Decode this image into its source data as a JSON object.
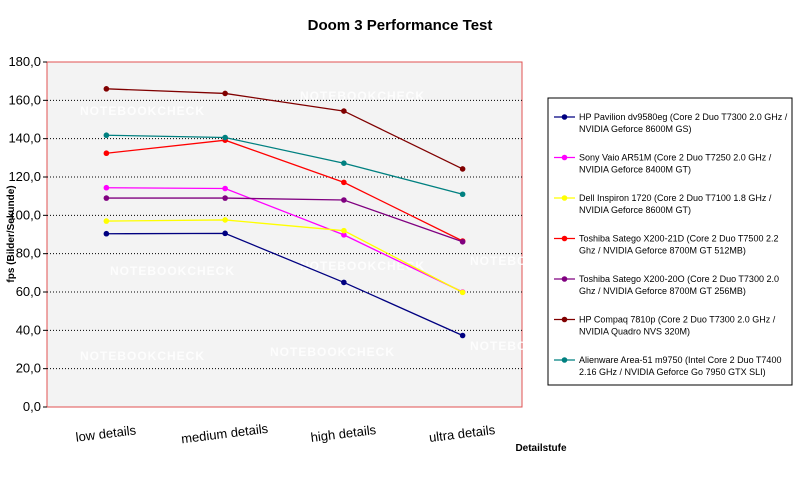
{
  "chart_data": {
    "type": "line",
    "title": "Doom 3 Performance Test",
    "ylabel": "fps (Bilder/Sekunde)",
    "xlabel": "Detailstufe",
    "categories": [
      "low details",
      "medium details",
      "high details",
      "ultra details"
    ],
    "ylim": [
      0,
      180
    ],
    "yticks": [
      "0,0",
      "20,0",
      "40,0",
      "60,0",
      "80,0",
      "100,0",
      "120,0",
      "140,0",
      "160,0",
      "180,0"
    ],
    "grid": "horizontal dotted",
    "legend_position": "right",
    "series": [
      {
        "name": "HP Pavilion dv9580eg (Core 2 Duo T7300 2.0 GHz / NVIDIA Geforce 8600M GS)",
        "color": "#000080",
        "values": [
          90.4,
          90.6,
          65.0,
          37.3
        ]
      },
      {
        "name": "Sony Vaio AR51M (Core 2 Duo T7250 2.0 GHz / NVIDIA Geforce 8400M GT)",
        "color": "#ff00ff",
        "values": [
          114.4,
          114.0,
          89.8,
          60.0
        ]
      },
      {
        "name": "Dell Inspiron 1720 (Core 2 Duo T7100 1.8 GHz / NVIDIA Geforce 8600M GT)",
        "color": "#ffff00",
        "values": [
          97.0,
          97.6,
          92.0,
          59.8
        ]
      },
      {
        "name": "Toshiba Satego X200-21D (Core 2 Duo T7500 2.2 Ghz / NVIDIA Geforce 8700M GT 512MB)",
        "color": "#ff0000",
        "values": [
          132.4,
          139.2,
          117.2,
          86.6
        ]
      },
      {
        "name": "Toshiba Satego X200-20O (Core 2 Duo T7300 2.0 Ghz / NVIDIA Geforce 8700M GT 256MB)",
        "color": "#800080",
        "values": [
          109.0,
          109.0,
          108.0,
          86.2
        ]
      },
      {
        "name": "HP Compaq 7810p (Core 2 Duo T7300 2.0 GHz / NVIDIA Quadro NVS 320M)",
        "color": "#800000",
        "values": [
          166.0,
          163.6,
          154.4,
          124.2
        ]
      },
      {
        "name": "Alienware Area-51 m9750 (Intel Core 2 Duo T7400 2.16 GHz / NVIDIA Geforce Go 7950 GTX SLI)",
        "color": "#008080",
        "values": [
          141.8,
          140.6,
          127.2,
          111.0
        ]
      }
    ],
    "legend_lines": [
      [
        "HP Pavilion dv9580eg (Core 2 Duo T7300 2.0 GHz /",
        "NVIDIA Geforce 8600M GS)"
      ],
      [
        "Sony Vaio AR51M (Core 2 Duo T7250 2.0 GHz /",
        "NVIDIA Geforce 8400M GT)"
      ],
      [
        "Dell Inspiron 1720 (Core 2 Duo T7100 1.8 GHz /",
        "NVIDIA Geforce 8600M GT)"
      ],
      [
        "Toshiba Satego X200-21D (Core 2 Duo T7500 2.2",
        "Ghz / NVIDIA Geforce 8700M GT 512MB)"
      ],
      [
        "Toshiba Satego X200-20O (Core 2 Duo T7300 2.0",
        "Ghz / NVIDIA Geforce 8700M GT 256MB)"
      ],
      [
        "HP Compaq 7810p (Core 2 Duo T7300 2.0 GHz /",
        "NVIDIA Quadro NVS 320M)"
      ],
      [
        "Alienware Area-51 m9750 (Intel Core 2 Duo T7400",
        "2.16 GHz / NVIDIA Geforce Go 7950 GTX SLI)"
      ]
    ],
    "watermark": "NOTEBOOKCHECK"
  }
}
